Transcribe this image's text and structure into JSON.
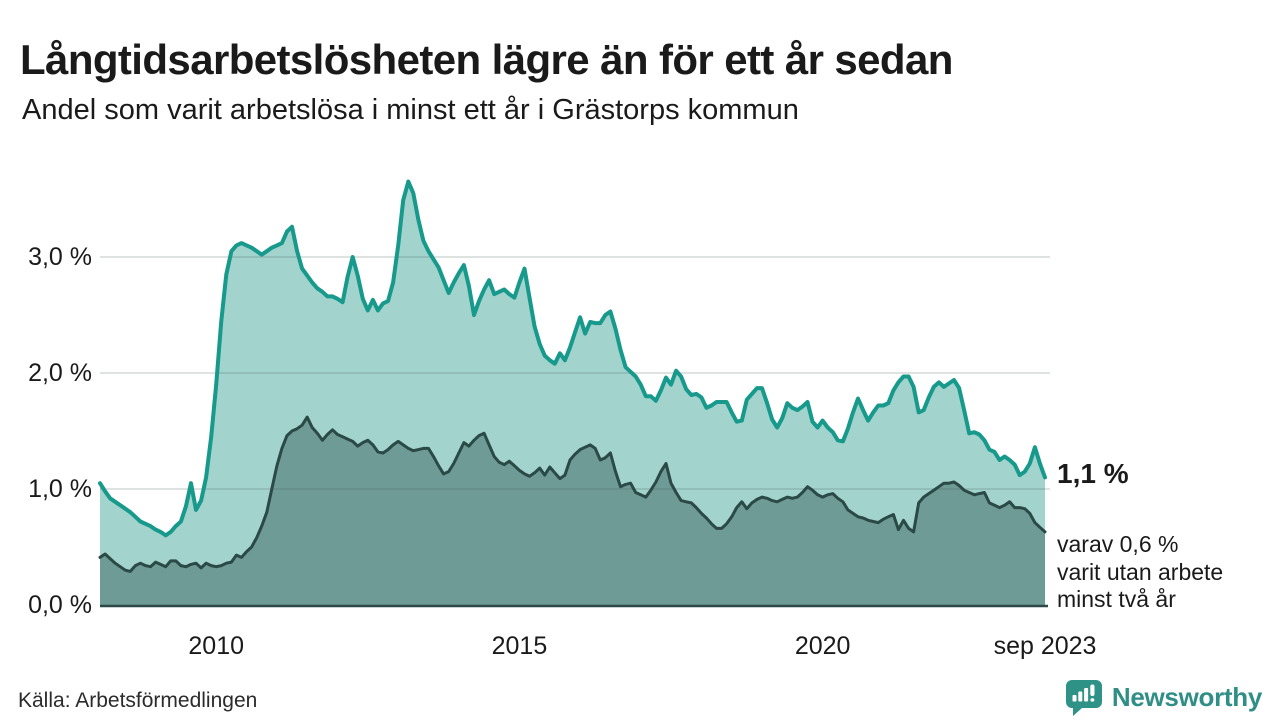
{
  "header": {
    "title": "Långtidsarbetslösheten lägre än för ett år sedan",
    "subtitle": "Andel som varit arbetslösa i minst ett år i Grästorps kommun"
  },
  "chart_data": {
    "type": "area",
    "unit": "%",
    "region": "Grästorps kommun",
    "period_start": "feb 2008",
    "period_end": "sep 2023",
    "grid": true,
    "legend_position": "none",
    "y_axis": {
      "ticks": [
        {
          "value": 0,
          "label": "0,0 %"
        },
        {
          "value": 1,
          "label": "1,0 %"
        },
        {
          "value": 2,
          "label": "2,0 %"
        },
        {
          "value": 3,
          "label": "3,0 %"
        }
      ],
      "ylim": [
        0,
        3.9
      ]
    },
    "x_axis": {
      "ticks": [
        {
          "month_index": 23,
          "label": "2010"
        },
        {
          "month_index": 83,
          "label": "2015"
        },
        {
          "month_index": 143,
          "label": "2020"
        },
        {
          "month_index": 187,
          "label": "sep 2023"
        }
      ]
    },
    "series": [
      {
        "name": "Arbetslösa minst ett år",
        "color": "#17998b",
        "fill": "#a2d3cd",
        "stroke_width": 4,
        "latest_value": 1.1,
        "values": [
          1.05,
          0.98,
          0.92,
          0.89,
          0.86,
          0.83,
          0.8,
          0.76,
          0.72,
          0.7,
          0.68,
          0.65,
          0.63,
          0.6,
          0.63,
          0.68,
          0.72,
          0.85,
          1.05,
          0.82,
          0.9,
          1.1,
          1.45,
          1.9,
          2.45,
          2.85,
          3.05,
          3.1,
          3.12,
          3.1,
          3.08,
          3.05,
          3.02,
          3.05,
          3.08,
          3.1,
          3.12,
          3.22,
          3.26,
          3.05,
          2.9,
          2.84,
          2.78,
          2.73,
          2.7,
          2.66,
          2.66,
          2.64,
          2.61,
          2.83,
          3.0,
          2.84,
          2.64,
          2.54,
          2.63,
          2.54,
          2.6,
          2.62,
          2.78,
          3.1,
          3.49,
          3.65,
          3.55,
          3.32,
          3.14,
          3.05,
          2.98,
          2.91,
          2.8,
          2.69,
          2.78,
          2.86,
          2.93,
          2.75,
          2.5,
          2.62,
          2.72,
          2.8,
          2.68,
          2.7,
          2.72,
          2.68,
          2.65,
          2.78,
          2.9,
          2.65,
          2.4,
          2.25,
          2.15,
          2.11,
          2.08,
          2.17,
          2.11,
          2.22,
          2.35,
          2.48,
          2.34,
          2.44,
          2.43,
          2.43,
          2.5,
          2.53,
          2.38,
          2.2,
          2.05,
          2.01,
          1.97,
          1.9,
          1.8,
          1.8,
          1.76,
          1.85,
          1.96,
          1.9,
          2.02,
          1.97,
          1.86,
          1.81,
          1.82,
          1.79,
          1.7,
          1.72,
          1.75,
          1.75,
          1.75,
          1.66,
          1.58,
          1.59,
          1.77,
          1.82,
          1.87,
          1.87,
          1.74,
          1.6,
          1.53,
          1.61,
          1.74,
          1.7,
          1.68,
          1.71,
          1.75,
          1.58,
          1.53,
          1.59,
          1.53,
          1.49,
          1.42,
          1.41,
          1.52,
          1.66,
          1.78,
          1.68,
          1.59,
          1.66,
          1.72,
          1.72,
          1.74,
          1.85,
          1.92,
          1.97,
          1.97,
          1.88,
          1.66,
          1.68,
          1.79,
          1.88,
          1.92,
          1.88,
          1.91,
          1.94,
          1.87,
          1.68,
          1.48,
          1.49,
          1.47,
          1.42,
          1.34,
          1.32,
          1.25,
          1.28,
          1.25,
          1.21,
          1.12,
          1.15,
          1.22,
          1.36,
          1.22,
          1.1
        ]
      },
      {
        "name": "varav utan arbete minst två år",
        "color": "#2b4946",
        "fill": "#6f9b96",
        "stroke_width": 3,
        "latest_value": 0.6,
        "values": [
          0.41,
          0.44,
          0.4,
          0.36,
          0.33,
          0.3,
          0.29,
          0.34,
          0.36,
          0.34,
          0.33,
          0.37,
          0.35,
          0.33,
          0.38,
          0.38,
          0.34,
          0.33,
          0.35,
          0.36,
          0.32,
          0.36,
          0.34,
          0.33,
          0.34,
          0.36,
          0.37,
          0.43,
          0.41,
          0.46,
          0.5,
          0.58,
          0.68,
          0.8,
          1.0,
          1.2,
          1.35,
          1.46,
          1.5,
          1.52,
          1.55,
          1.62,
          1.53,
          1.48,
          1.42,
          1.47,
          1.51,
          1.47,
          1.45,
          1.43,
          1.41,
          1.37,
          1.4,
          1.42,
          1.38,
          1.32,
          1.31,
          1.34,
          1.38,
          1.41,
          1.38,
          1.35,
          1.33,
          1.34,
          1.35,
          1.35,
          1.28,
          1.2,
          1.13,
          1.15,
          1.22,
          1.31,
          1.4,
          1.37,
          1.42,
          1.46,
          1.48,
          1.38,
          1.28,
          1.23,
          1.21,
          1.24,
          1.2,
          1.16,
          1.13,
          1.11,
          1.14,
          1.18,
          1.12,
          1.19,
          1.14,
          1.09,
          1.12,
          1.25,
          1.3,
          1.34,
          1.36,
          1.38,
          1.35,
          1.25,
          1.27,
          1.31,
          1.15,
          1.02,
          1.04,
          1.05,
          0.97,
          0.95,
          0.93,
          0.99,
          1.06,
          1.15,
          1.22,
          1.05,
          0.97,
          0.9,
          0.89,
          0.88,
          0.84,
          0.79,
          0.75,
          0.7,
          0.66,
          0.66,
          0.7,
          0.76,
          0.84,
          0.89,
          0.83,
          0.88,
          0.91,
          0.93,
          0.92,
          0.9,
          0.89,
          0.91,
          0.93,
          0.92,
          0.93,
          0.97,
          1.02,
          0.99,
          0.95,
          0.93,
          0.95,
          0.96,
          0.92,
          0.89,
          0.82,
          0.79,
          0.76,
          0.75,
          0.73,
          0.72,
          0.71,
          0.74,
          0.76,
          0.78,
          0.65,
          0.73,
          0.66,
          0.63,
          0.88,
          0.93,
          0.96,
          0.99,
          1.02,
          1.05,
          1.05,
          1.06,
          1.03,
          0.99,
          0.97,
          0.95,
          0.96,
          0.97,
          0.88,
          0.86,
          0.84,
          0.86,
          0.89,
          0.84,
          0.84,
          0.83,
          0.79,
          0.71,
          0.67,
          0.63
        ]
      }
    ],
    "annotations": {
      "latest_total": "1,1 %",
      "latest_detail": "varav 0,6 %\nvarit utan arbete\nminst två år"
    }
  },
  "footer": {
    "source": "Källa: Arbetsförmedlingen",
    "brand": "Newsworthy"
  },
  "colors": {
    "accent_teal": "#17998b",
    "fill_light": "#a2d3cd",
    "fill_dark": "#6f9b96",
    "line_dark": "#2b4946",
    "grid": "rgba(70,95,90,0.18)",
    "text": "#1a1a1a",
    "brand_teal": "#2f8f86"
  }
}
